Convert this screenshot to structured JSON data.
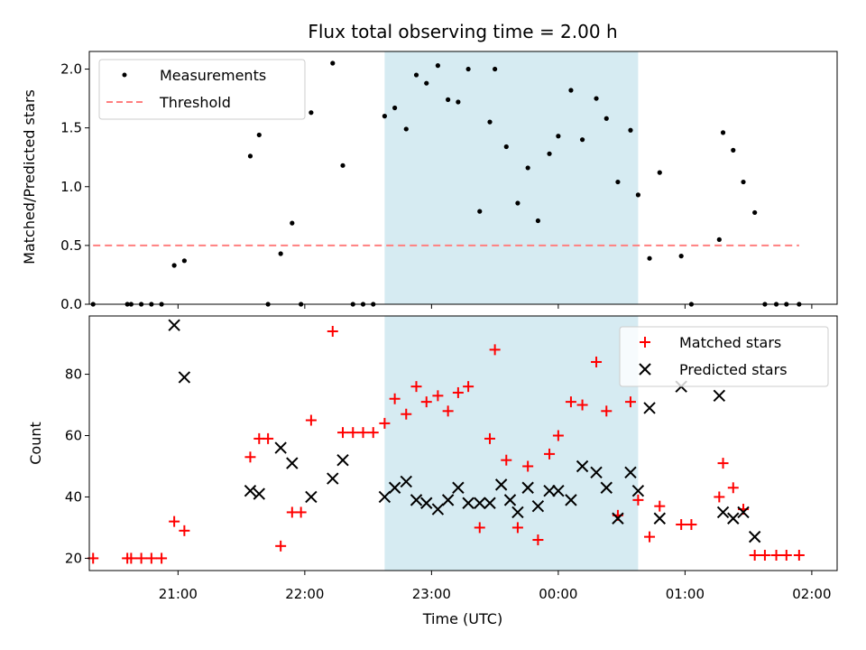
{
  "chart_data": [
    {
      "type": "scatter",
      "title": "Flux total observing time = 2.00 h",
      "xlabel": "",
      "ylabel": "Matched/Predicted stars",
      "xlim": [
        20.3,
        26.2
      ],
      "ylim": [
        0,
        2.15
      ],
      "yticks": [
        0,
        0.5,
        1.0,
        1.5,
        2.0
      ],
      "ytick_labels": [
        "0.0",
        "0.5",
        "1.0",
        "1.5",
        "2.0"
      ],
      "legend_position": "top-left",
      "shaded_span": [
        22.63,
        24.63
      ],
      "shade_color": "#add8e6",
      "series": [
        {
          "name": "Measurements",
          "marker": "dot",
          "color": "#000000",
          "x": [
            20.33,
            20.6,
            20.63,
            20.71,
            20.79,
            20.87,
            20.97,
            21.05,
            21.57,
            21.64,
            21.71,
            21.81,
            21.9,
            21.97,
            22.05,
            22.22,
            22.3,
            22.38,
            22.46,
            22.54,
            22.63,
            22.71,
            22.8,
            22.88,
            22.96,
            23.05,
            23.13,
            23.21,
            23.29,
            23.38,
            23.46,
            23.5,
            23.59,
            23.68,
            23.76,
            23.84,
            23.93,
            24.0,
            24.1,
            24.19,
            24.3,
            24.38,
            24.47,
            24.57,
            24.63,
            24.72,
            24.8,
            24.97,
            25.05,
            25.27,
            25.3,
            25.38,
            25.46,
            25.55,
            25.63,
            25.72,
            25.8,
            25.9
          ],
          "y": [
            0.0,
            0.0,
            0.0,
            0.0,
            0.0,
            0.0,
            0.33,
            0.37,
            1.26,
            1.44,
            0.0,
            0.43,
            0.69,
            0.0,
            1.63,
            2.05,
            1.18,
            0.0,
            0.0,
            0.0,
            1.6,
            1.67,
            1.49,
            1.95,
            1.88,
            2.03,
            1.74,
            1.72,
            2.0,
            0.79,
            1.55,
            2.0,
            1.34,
            0.86,
            1.16,
            0.71,
            1.28,
            1.43,
            1.82,
            1.4,
            1.75,
            1.58,
            1.04,
            1.48,
            0.93,
            0.39,
            1.12,
            0.41,
            0.0,
            0.55,
            1.46,
            1.31,
            1.04,
            0.78,
            0.0,
            0.0,
            0.0,
            0.0
          ]
        },
        {
          "name": "Threshold",
          "marker": "dashed-line",
          "color": "#ff7f7f",
          "x": [
            20.33,
            25.9
          ],
          "y": [
            0.5,
            0.5
          ]
        }
      ]
    },
    {
      "type": "scatter",
      "title": "",
      "xlabel": "Time (UTC)",
      "ylabel": "Count",
      "xlim": [
        20.3,
        26.2
      ],
      "ylim": [
        16,
        99
      ],
      "yticks": [
        20,
        40,
        60,
        80
      ],
      "ytick_labels": [
        "20",
        "40",
        "60",
        "80"
      ],
      "xticks": [
        21,
        22,
        23,
        24,
        25,
        26
      ],
      "xtick_labels": [
        "21:00",
        "22:00",
        "23:00",
        "00:00",
        "01:00",
        "02:00"
      ],
      "legend_position": "top-right",
      "shaded_span": [
        22.63,
        24.63
      ],
      "shade_color": "#add8e6",
      "series": [
        {
          "name": "Matched stars",
          "marker": "plus",
          "color": "#ff0000",
          "x": [
            20.33,
            20.6,
            20.63,
            20.71,
            20.79,
            20.87,
            20.97,
            21.05,
            21.57,
            21.64,
            21.71,
            21.81,
            21.9,
            21.97,
            22.05,
            22.22,
            22.3,
            22.38,
            22.46,
            22.54,
            22.63,
            22.71,
            22.8,
            22.88,
            22.96,
            23.05,
            23.13,
            23.21,
            23.29,
            23.38,
            23.46,
            23.5,
            23.59,
            23.68,
            23.76,
            23.84,
            23.93,
            24.0,
            24.1,
            24.19,
            24.3,
            24.38,
            24.47,
            24.57,
            24.63,
            24.72,
            24.8,
            24.97,
            25.05,
            25.27,
            25.3,
            25.38,
            25.46,
            25.55,
            25.63,
            25.72,
            25.8,
            25.9
          ],
          "y": [
            20,
            20,
            20,
            20,
            20,
            20,
            32,
            29,
            53,
            59,
            59,
            24,
            35,
            35,
            65,
            94,
            61,
            61,
            61,
            61,
            64,
            72,
            67,
            76,
            71,
            73,
            68,
            74,
            76,
            30,
            59,
            88,
            52,
            30,
            50,
            26,
            54,
            60,
            71,
            70,
            84,
            68,
            34,
            71,
            39,
            27,
            37,
            31,
            31,
            40,
            51,
            43,
            36,
            21,
            21,
            21,
            21,
            21
          ]
        },
        {
          "name": "Predicted stars",
          "marker": "x",
          "color": "#000000",
          "x": [
            20.97,
            21.05,
            21.57,
            21.64,
            21.81,
            21.9,
            22.05,
            22.22,
            22.3,
            22.63,
            22.71,
            22.8,
            22.88,
            22.96,
            23.05,
            23.13,
            23.21,
            23.29,
            23.38,
            23.46,
            23.55,
            23.62,
            23.68,
            23.76,
            23.84,
            23.93,
            24.0,
            24.1,
            24.19,
            24.3,
            24.38,
            24.47,
            24.57,
            24.63,
            24.72,
            24.8,
            24.97,
            25.27,
            25.3,
            25.38,
            25.46,
            25.55
          ],
          "y": [
            96,
            79,
            42,
            41,
            56,
            51,
            40,
            46,
            52,
            40,
            43,
            45,
            39,
            38,
            36,
            39,
            43,
            38,
            38,
            38,
            44,
            39,
            35,
            43,
            37,
            42,
            42,
            39,
            50,
            48,
            43,
            33,
            48,
            42,
            69,
            33,
            76,
            73,
            35,
            33,
            35,
            27
          ]
        }
      ]
    }
  ]
}
